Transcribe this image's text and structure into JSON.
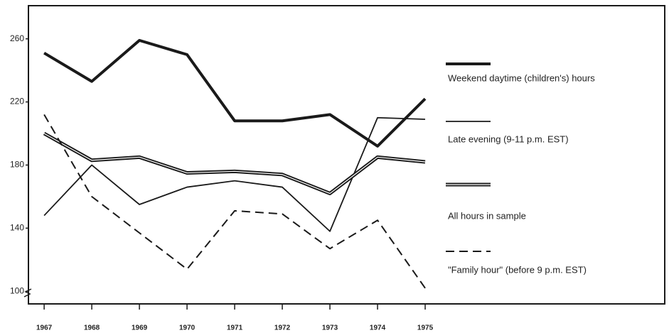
{
  "chart_data": {
    "type": "line",
    "x": [
      1967,
      1968,
      1969,
      1970,
      1971,
      1972,
      1973,
      1974,
      1975
    ],
    "series": [
      {
        "name": "Weekend daytime (children's) hours",
        "color": "#1a1a1a",
        "line_style": "thick",
        "values": [
          251,
          233,
          259,
          250,
          208,
          208,
          212,
          192,
          222
        ]
      },
      {
        "name": "Late evening (9-11 p.m. EST)",
        "color": "#1a1a1a",
        "line_style": "thin",
        "values": [
          148,
          180,
          155,
          166,
          170,
          166,
          138,
          210,
          209
        ]
      },
      {
        "name": "All hours in sample",
        "color": "#1a1a1a",
        "line_style": "double",
        "values": [
          200,
          183,
          185,
          175,
          176,
          174,
          162,
          185,
          182
        ]
      },
      {
        "name": "\"Family hour\" (before 9 p.m. EST)",
        "color": "#1a1a1a",
        "line_style": "dashed",
        "values": [
          212,
          160,
          137,
          114,
          151,
          149,
          127,
          145,
          102
        ]
      }
    ],
    "xlim": [
      1966.67,
      1980.03
    ],
    "xticks": [
      1967,
      1968,
      1969,
      1970,
      1971,
      1972,
      1973,
      1974,
      1975
    ],
    "ylim": [
      92,
      281
    ],
    "yticks": [
      100,
      140,
      180,
      220,
      260
    ],
    "legend": "right"
  }
}
